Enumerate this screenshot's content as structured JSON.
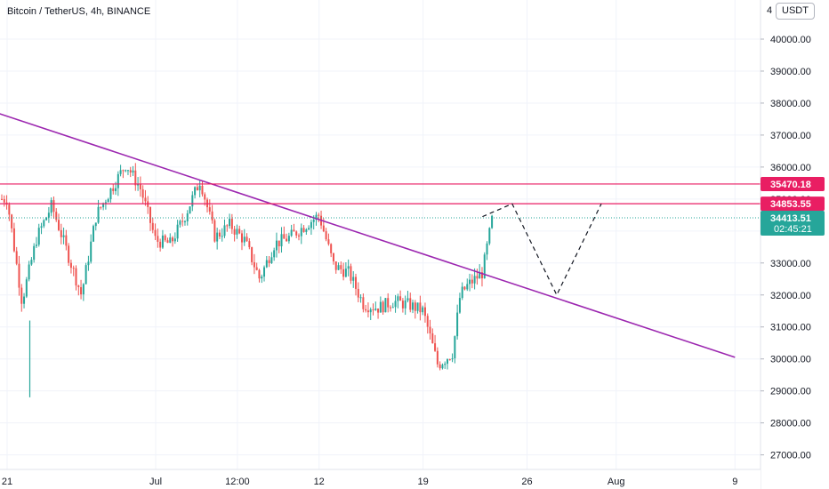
{
  "chart_title": "Bitcoin / TetherUS, 4h, BINANCE",
  "currency_label": "USDT",
  "y_axis_top_label": "4",
  "colors": {
    "up": "#26a69a",
    "down": "#ef5350",
    "trendline": "#9c27b0",
    "level_line": "#e91e63",
    "level_tag": "#e91e63",
    "last_price_tag": "#26a69a",
    "last_price_line": "#26a69a",
    "projection": "#131722"
  },
  "chart_data": {
    "type": "candlestick",
    "symbol": "Bitcoin / TetherUS",
    "interval": "4h",
    "exchange": "BINANCE",
    "ylim": [
      26500,
      41000
    ],
    "y_ticks": [
      "40000.00",
      "39000.00",
      "38000.00",
      "37000.00",
      "36000.00",
      "35000.00",
      "34000.00",
      "33000.00",
      "32000.00",
      "31000.00",
      "30000.00",
      "29000.00",
      "28000.00",
      "27000.00"
    ],
    "x_ticks": [
      "21",
      "Jul",
      "12:00",
      "12",
      "19",
      "26",
      "Aug",
      "9"
    ],
    "price_levels": [
      {
        "label": "35470.18",
        "value": 35470.18
      },
      {
        "label": "34853.55",
        "value": 34853.55
      }
    ],
    "last_price": {
      "label": "34413.51",
      "countdown": "02:45:21",
      "value": 34413.51
    },
    "trendline": {
      "start": {
        "date": "2021-06-18",
        "value": 38050
      },
      "end": {
        "date": "2021-08-09",
        "value": 30050
      }
    },
    "projection_path": [
      {
        "date": "2021-07-23",
        "value": 34450
      },
      {
        "date": "2021-07-25",
        "value": 34850
      },
      {
        "date": "2021-07-28",
        "value": 32000
      },
      {
        "date": "2021-07-31",
        "value": 34850
      }
    ],
    "candle_waypoints": [
      {
        "date": "2021-06-21",
        "value": 35000
      },
      {
        "date": "2021-06-22",
        "value": 31800
      },
      {
        "date": "2021-06-23",
        "value": 33800
      },
      {
        "date": "2021-06-24",
        "value": 34800
      },
      {
        "date": "2021-06-26",
        "value": 32000
      },
      {
        "date": "2021-06-27",
        "value": 34500
      },
      {
        "date": "2021-06-29",
        "value": 36100
      },
      {
        "date": "2021-06-30",
        "value": 35300
      },
      {
        "date": "2021-07-01",
        "value": 33700
      },
      {
        "date": "2021-07-02",
        "value": 33600
      },
      {
        "date": "2021-07-03",
        "value": 34500
      },
      {
        "date": "2021-07-04",
        "value": 35600
      },
      {
        "date": "2021-07-05",
        "value": 33800
      },
      {
        "date": "2021-07-06",
        "value": 34200
      },
      {
        "date": "2021-07-07",
        "value": 33700
      },
      {
        "date": "2021-07-08",
        "value": 32500
      },
      {
        "date": "2021-07-09",
        "value": 33600
      },
      {
        "date": "2021-07-10",
        "value": 33800
      },
      {
        "date": "2021-07-12",
        "value": 34500
      },
      {
        "date": "2021-07-13",
        "value": 32900
      },
      {
        "date": "2021-07-14",
        "value": 32700
      },
      {
        "date": "2021-07-15",
        "value": 31700
      },
      {
        "date": "2021-07-16",
        "value": 31600
      },
      {
        "date": "2021-07-17",
        "value": 31800
      },
      {
        "date": "2021-07-18",
        "value": 31700
      },
      {
        "date": "2021-07-19",
        "value": 31500
      },
      {
        "date": "2021-07-20",
        "value": 29800
      },
      {
        "date": "2021-07-21",
        "value": 30200
      },
      {
        "date": "2021-07-21T12:00",
        "value": 32000
      },
      {
        "date": "2021-07-22",
        "value": 32300
      },
      {
        "date": "2021-07-23",
        "value": 32700
      },
      {
        "date": "2021-07-23T16:00",
        "value": 34413.51
      }
    ]
  }
}
